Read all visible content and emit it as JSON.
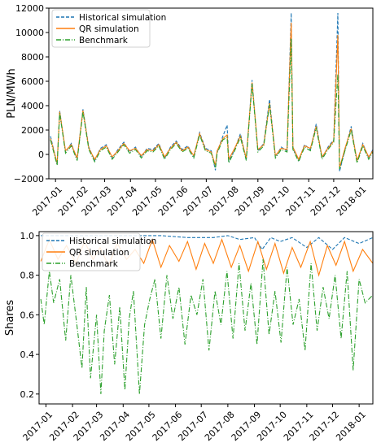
{
  "chart_data": [
    {
      "type": "line",
      "title": "",
      "xlabel": "",
      "ylabel": "PLN/MWh",
      "ylim": [
        -2000,
        12000
      ],
      "yticks": [
        -2000,
        0,
        2000,
        4000,
        6000,
        8000,
        10000,
        12000
      ],
      "ytick_labels": [
        "−2000",
        "0",
        "2000",
        "4000",
        "6000",
        "8000",
        "10000",
        "12000"
      ],
      "xlim": [
        "2016-12-24",
        "2018-01-17"
      ],
      "xtick_labels": [
        "2017-01",
        "2017-02",
        "2017-03",
        "2017-04",
        "2017-05",
        "2017-06",
        "2017-07",
        "2017-08",
        "2017-09",
        "2017-10",
        "2017-11",
        "2017-12",
        "2018-01"
      ],
      "grid": false,
      "legend": "top-left",
      "series": [
        {
          "name": "Historical simulation",
          "color": "#1f77b4",
          "style": "dashed",
          "x": [
            "2016-12-26",
            "2017-01-03",
            "2017-01-06",
            "2017-01-13",
            "2017-01-20",
            "2017-01-27",
            "2017-02-03",
            "2017-02-10",
            "2017-02-17",
            "2017-02-24",
            "2017-03-03",
            "2017-03-10",
            "2017-03-17",
            "2017-03-24",
            "2017-03-31",
            "2017-04-07",
            "2017-04-14",
            "2017-04-21",
            "2017-04-28",
            "2017-05-05",
            "2017-05-12",
            "2017-05-19",
            "2017-05-26",
            "2017-06-02",
            "2017-06-09",
            "2017-06-16",
            "2017-06-23",
            "2017-06-30",
            "2017-07-07",
            "2017-07-12",
            "2017-07-14",
            "2017-07-21",
            "2017-07-26",
            "2017-07-28",
            "2017-08-04",
            "2017-08-11",
            "2017-08-18",
            "2017-08-25",
            "2017-09-01",
            "2017-09-08",
            "2017-09-15",
            "2017-09-22",
            "2017-09-29",
            "2017-10-06",
            "2017-10-11",
            "2017-10-13",
            "2017-10-20",
            "2017-10-27",
            "2017-11-03",
            "2017-11-10",
            "2017-11-17",
            "2017-11-24",
            "2017-12-01",
            "2017-12-06",
            "2017-12-08",
            "2017-12-15",
            "2017-12-22",
            "2017-12-29",
            "2018-01-05",
            "2018-01-12",
            "2018-01-17"
          ],
          "y": [
            1500,
            -800,
            3600,
            200,
            900,
            -400,
            3700,
            600,
            -500,
            500,
            800,
            -300,
            400,
            1000,
            200,
            600,
            -200,
            500,
            400,
            900,
            -300,
            600,
            1100,
            400,
            700,
            -200,
            1800,
            500,
            300,
            -1300,
            200,
            1500,
            2400,
            -600,
            400,
            1700,
            -400,
            6100,
            300,
            900,
            4500,
            -200,
            600,
            300,
            11600,
            500,
            -500,
            800,
            400,
            2500,
            -300,
            600,
            1200,
            11600,
            -1400,
            500,
            2300,
            -600,
            900,
            -300,
            400
          ]
        },
        {
          "name": "QR simulation",
          "color": "#ff7f0e",
          "style": "solid",
          "x": [
            "2016-12-26",
            "2017-01-03",
            "2017-01-06",
            "2017-01-13",
            "2017-01-20",
            "2017-01-27",
            "2017-02-03",
            "2017-02-10",
            "2017-02-17",
            "2017-02-24",
            "2017-03-03",
            "2017-03-10",
            "2017-03-17",
            "2017-03-24",
            "2017-03-31",
            "2017-04-07",
            "2017-04-14",
            "2017-04-21",
            "2017-04-28",
            "2017-05-05",
            "2017-05-12",
            "2017-05-19",
            "2017-05-26",
            "2017-06-02",
            "2017-06-09",
            "2017-06-16",
            "2017-06-23",
            "2017-06-30",
            "2017-07-07",
            "2017-07-12",
            "2017-07-14",
            "2017-07-21",
            "2017-07-26",
            "2017-07-28",
            "2017-08-04",
            "2017-08-11",
            "2017-08-18",
            "2017-08-25",
            "2017-09-01",
            "2017-09-08",
            "2017-09-15",
            "2017-09-22",
            "2017-09-29",
            "2017-10-06",
            "2017-10-11",
            "2017-10-13",
            "2017-10-20",
            "2017-10-27",
            "2017-11-03",
            "2017-11-10",
            "2017-11-17",
            "2017-11-24",
            "2017-12-01",
            "2017-12-06",
            "2017-12-08",
            "2017-12-15",
            "2017-12-22",
            "2017-12-29",
            "2018-01-05",
            "2018-01-12",
            "2018-01-17"
          ],
          "y": [
            1300,
            -700,
            3500,
            300,
            800,
            -300,
            3600,
            500,
            -400,
            400,
            700,
            -200,
            300,
            900,
            300,
            500,
            -100,
            400,
            300,
            800,
            -200,
            500,
            1000,
            300,
            600,
            -100,
            1700,
            400,
            200,
            -900,
            300,
            1300,
            1600,
            -400,
            500,
            1500,
            -300,
            5900,
            400,
            800,
            4200,
            -100,
            500,
            400,
            10800,
            600,
            -400,
            700,
            500,
            2300,
            -200,
            500,
            1100,
            9800,
            -1100,
            600,
            2100,
            -500,
            800,
            -200,
            300
          ]
        },
        {
          "name": "Benchmark",
          "color": "#2ca02c",
          "style": "dashdot",
          "x": [
            "2016-12-26",
            "2017-01-03",
            "2017-01-06",
            "2017-01-13",
            "2017-01-20",
            "2017-01-27",
            "2017-02-03",
            "2017-02-10",
            "2017-02-17",
            "2017-02-24",
            "2017-03-03",
            "2017-03-10",
            "2017-03-17",
            "2017-03-24",
            "2017-03-31",
            "2017-04-07",
            "2017-04-14",
            "2017-04-21",
            "2017-04-28",
            "2017-05-05",
            "2017-05-12",
            "2017-05-19",
            "2017-05-26",
            "2017-06-02",
            "2017-06-09",
            "2017-06-16",
            "2017-06-23",
            "2017-06-30",
            "2017-07-07",
            "2017-07-12",
            "2017-07-14",
            "2017-07-21",
            "2017-07-26",
            "2017-07-28",
            "2017-08-04",
            "2017-08-11",
            "2017-08-18",
            "2017-08-25",
            "2017-09-01",
            "2017-09-08",
            "2017-09-15",
            "2017-09-22",
            "2017-09-29",
            "2017-10-06",
            "2017-10-11",
            "2017-10-13",
            "2017-10-20",
            "2017-10-27",
            "2017-11-03",
            "2017-11-10",
            "2017-11-17",
            "2017-11-24",
            "2017-12-01",
            "2017-12-06",
            "2017-12-08",
            "2017-12-15",
            "2017-12-22",
            "2017-12-29",
            "2018-01-05",
            "2018-01-12",
            "2018-01-17"
          ],
          "y": [
            1200,
            -900,
            3400,
            100,
            700,
            -500,
            3500,
            400,
            -600,
            300,
            600,
            -400,
            200,
            800,
            100,
            400,
            -300,
            300,
            200,
            700,
            -400,
            400,
            900,
            200,
            500,
            -300,
            1600,
            300,
            100,
            -1100,
            100,
            1200,
            1400,
            -700,
            300,
            1400,
            -500,
            5800,
            200,
            700,
            4100,
            -300,
            400,
            200,
            9500,
            400,
            -600,
            600,
            300,
            2200,
            -400,
            400,
            1000,
            6600,
            -1200,
            400,
            2000,
            -700,
            700,
            -400,
            200
          ]
        }
      ]
    },
    {
      "type": "line",
      "title": "",
      "xlabel": "",
      "ylabel": "Shares",
      "ylim": [
        0.15,
        1.02
      ],
      "yticks": [
        0.2,
        0.4,
        0.6,
        0.8,
        1.0
      ],
      "ytick_labels": [
        "0.2",
        "0.4",
        "0.6",
        "0.8",
        "1.0"
      ],
      "xlim": [
        "2016-12-24",
        "2018-01-17"
      ],
      "xtick_labels": [
        "2017-01",
        "2017-02",
        "2017-03",
        "2017-04",
        "2017-05",
        "2017-06",
        "2017-07",
        "2017-08",
        "2017-09",
        "2017-10",
        "2017-11",
        "2017-12",
        "2018-01"
      ],
      "grid": false,
      "legend": "top-left",
      "series": [
        {
          "name": "Historical simulation",
          "color": "#1f77b4",
          "style": "dashed",
          "x": [
            "2016-12-26",
            "2017-01-15",
            "2017-02-15",
            "2017-03-15",
            "2017-04-15",
            "2017-05-01",
            "2017-05-15",
            "2017-06-15",
            "2017-07-15",
            "2017-08-01",
            "2017-08-15",
            "2017-09-01",
            "2017-09-10",
            "2017-09-20",
            "2017-10-01",
            "2017-10-15",
            "2017-11-01",
            "2017-11-15",
            "2017-12-01",
            "2017-12-15",
            "2018-01-01",
            "2018-01-17"
          ],
          "y": [
            1.0,
            1.0,
            1.0,
            1.0,
            1.0,
            1.0,
            1.0,
            0.99,
            0.99,
            1.0,
            0.98,
            0.99,
            0.93,
            0.99,
            0.97,
            0.99,
            0.94,
            0.99,
            0.93,
            0.99,
            0.96,
            0.99
          ]
        },
        {
          "name": "QR simulation",
          "color": "#ff7f0e",
          "style": "solid",
          "x": [
            "2016-12-26",
            "2017-01-05",
            "2017-01-15",
            "2017-01-25",
            "2017-02-05",
            "2017-02-15",
            "2017-02-25",
            "2017-03-05",
            "2017-03-15",
            "2017-03-25",
            "2017-04-05",
            "2017-04-15",
            "2017-04-25",
            "2017-05-05",
            "2017-05-15",
            "2017-05-25",
            "2017-06-05",
            "2017-06-15",
            "2017-06-25",
            "2017-07-05",
            "2017-07-15",
            "2017-07-25",
            "2017-08-05",
            "2017-08-15",
            "2017-08-25",
            "2017-09-05",
            "2017-09-15",
            "2017-09-25",
            "2017-10-05",
            "2017-10-15",
            "2017-10-25",
            "2017-11-05",
            "2017-11-15",
            "2017-11-25",
            "2017-12-05",
            "2017-12-15",
            "2017-12-25",
            "2018-01-05",
            "2018-01-17"
          ],
          "y": [
            0.87,
            0.98,
            0.88,
            0.95,
            0.86,
            0.97,
            0.88,
            0.94,
            0.85,
            0.96,
            0.88,
            0.93,
            0.86,
            0.98,
            0.84,
            0.95,
            0.87,
            0.97,
            0.83,
            0.96,
            0.86,
            0.98,
            0.84,
            0.95,
            0.82,
            0.97,
            0.83,
            0.96,
            0.81,
            0.94,
            0.84,
            0.97,
            0.8,
            0.95,
            0.85,
            0.97,
            0.82,
            0.93,
            0.86
          ]
        },
        {
          "name": "Benchmark",
          "color": "#2ca02c",
          "style": "dashdot",
          "x": [
            "2016-12-26",
            "2016-12-30",
            "2017-01-05",
            "2017-01-10",
            "2017-01-17",
            "2017-01-24",
            "2017-01-30",
            "2017-02-06",
            "2017-02-12",
            "2017-02-17",
            "2017-02-22",
            "2017-03-01",
            "2017-03-06",
            "2017-03-10",
            "2017-03-16",
            "2017-03-22",
            "2017-03-28",
            "2017-04-03",
            "2017-04-08",
            "2017-04-13",
            "2017-04-20",
            "2017-04-26",
            "2017-05-02",
            "2017-05-08",
            "2017-05-15",
            "2017-05-22",
            "2017-05-29",
            "2017-06-05",
            "2017-06-12",
            "2017-06-19",
            "2017-06-26",
            "2017-07-03",
            "2017-07-10",
            "2017-07-17",
            "2017-07-24",
            "2017-07-31",
            "2017-08-07",
            "2017-08-14",
            "2017-08-21",
            "2017-08-28",
            "2017-09-04",
            "2017-09-11",
            "2017-09-18",
            "2017-09-25",
            "2017-10-02",
            "2017-10-09",
            "2017-10-16",
            "2017-10-23",
            "2017-10-30",
            "2017-11-06",
            "2017-11-13",
            "2017-11-20",
            "2017-11-27",
            "2017-12-04",
            "2017-12-11",
            "2017-12-18",
            "2017-12-25",
            "2018-01-01",
            "2018-01-08",
            "2018-01-17"
          ],
          "y": [
            0.68,
            0.55,
            0.82,
            0.66,
            0.78,
            0.47,
            0.8,
            0.55,
            0.33,
            0.74,
            0.28,
            0.6,
            0.2,
            0.52,
            0.7,
            0.35,
            0.64,
            0.22,
            0.58,
            0.72,
            0.2,
            0.55,
            0.68,
            0.78,
            0.48,
            0.8,
            0.58,
            0.74,
            0.45,
            0.7,
            0.6,
            0.78,
            0.42,
            0.72,
            0.55,
            0.82,
            0.48,
            0.86,
            0.52,
            0.76,
            0.45,
            0.88,
            0.5,
            0.72,
            0.46,
            0.84,
            0.55,
            0.68,
            0.42,
            0.86,
            0.52,
            0.74,
            0.58,
            0.8,
            0.48,
            0.82,
            0.32,
            0.78,
            0.66,
            0.7
          ]
        }
      ]
    }
  ]
}
